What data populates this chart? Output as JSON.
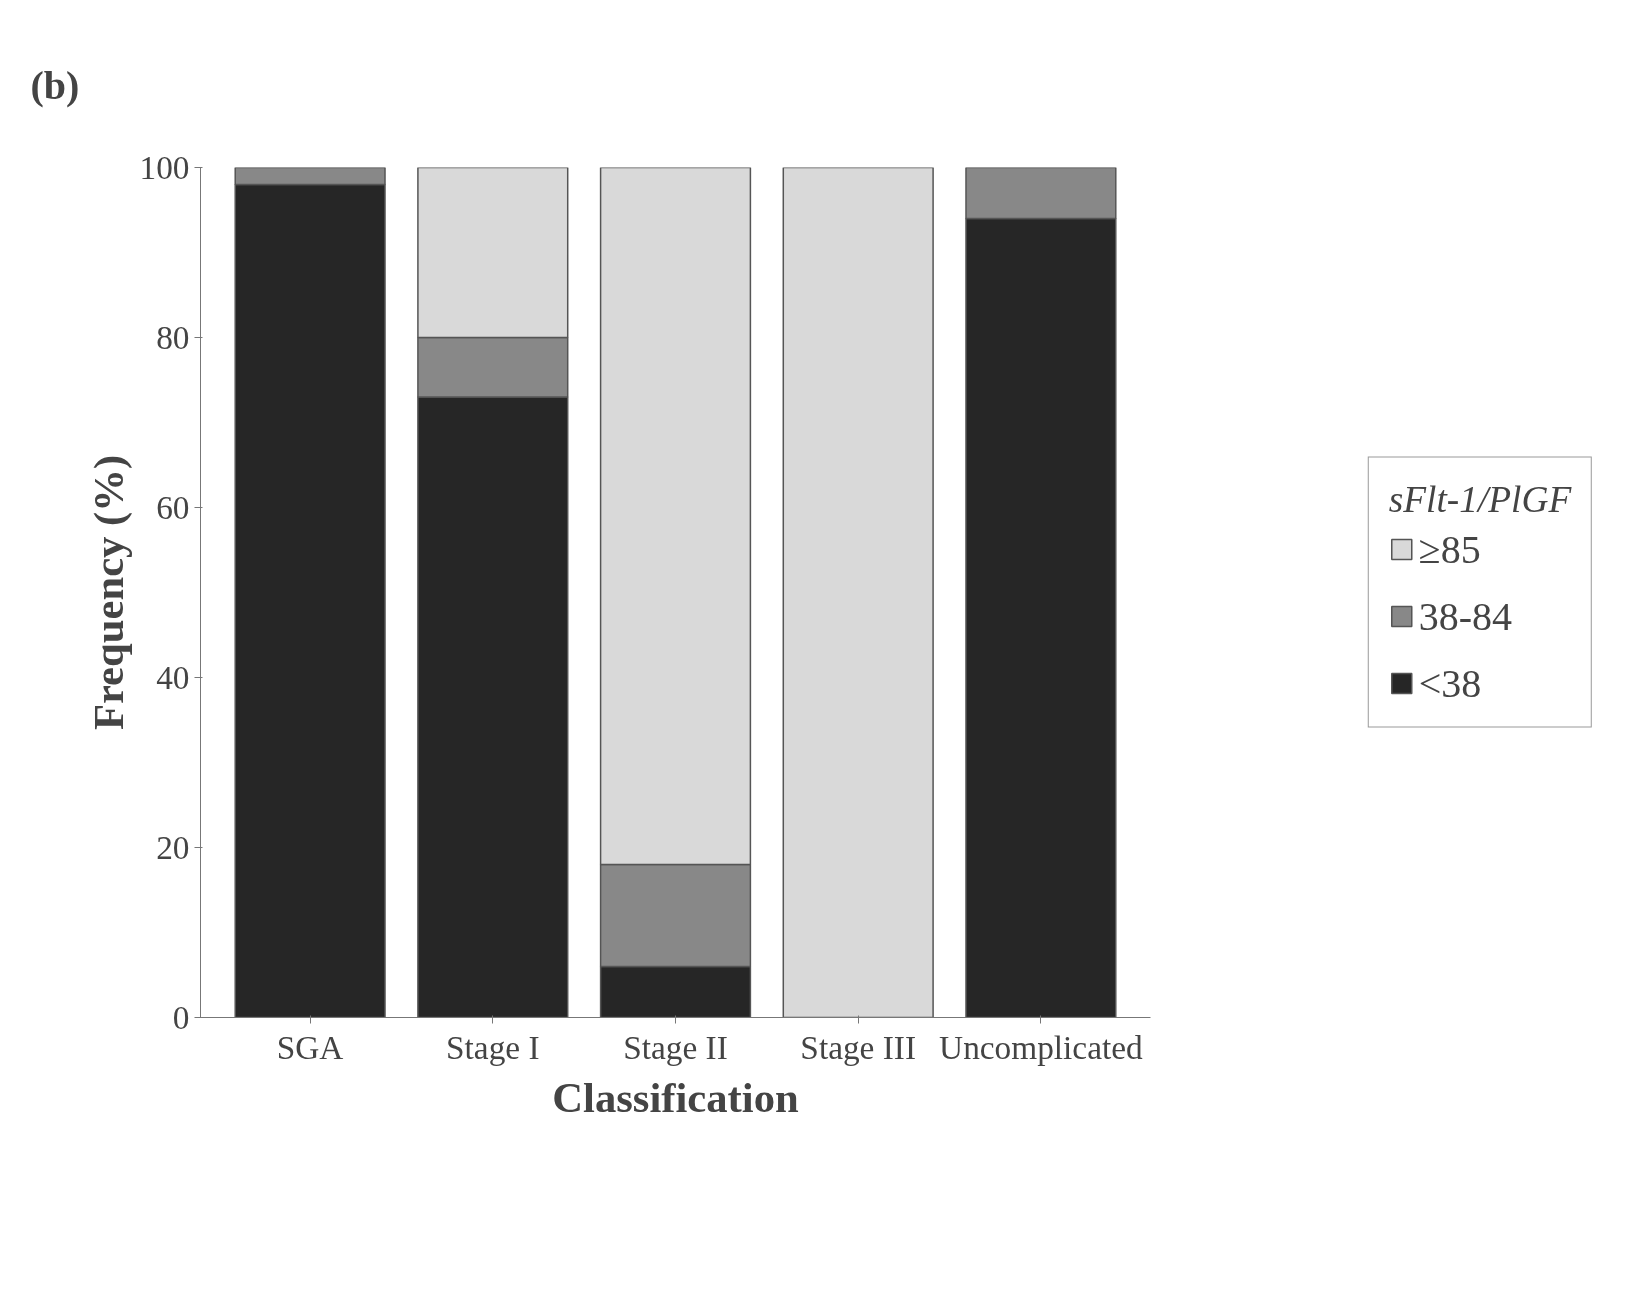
{
  "chart_data": {
    "type": "bar",
    "stacked": true,
    "xlabel": "Classification",
    "ylabel": "Frequency (%)",
    "legend_title": "sFlt-1/PlGF",
    "categories": [
      "SGA",
      "Stage I",
      "Stage II",
      "Stage III",
      "Uncomplicated"
    ],
    "series": [
      {
        "name": "<38",
        "color": "#262626",
        "values": [
          98,
          73,
          6,
          0,
          94
        ]
      },
      {
        "name": "38-84",
        "color": "#888888",
        "values": [
          2,
          7,
          12,
          0,
          6
        ]
      },
      {
        "name": "≥85",
        "color": "#d9d9d9",
        "values": [
          0,
          20,
          82,
          100,
          0
        ]
      }
    ],
    "ylim": [
      0,
      100
    ],
    "yticks": [
      0,
      20,
      40,
      60,
      80,
      100
    ],
    "grid": false,
    "legend": "right",
    "annotations": [
      "(b)"
    ]
  }
}
